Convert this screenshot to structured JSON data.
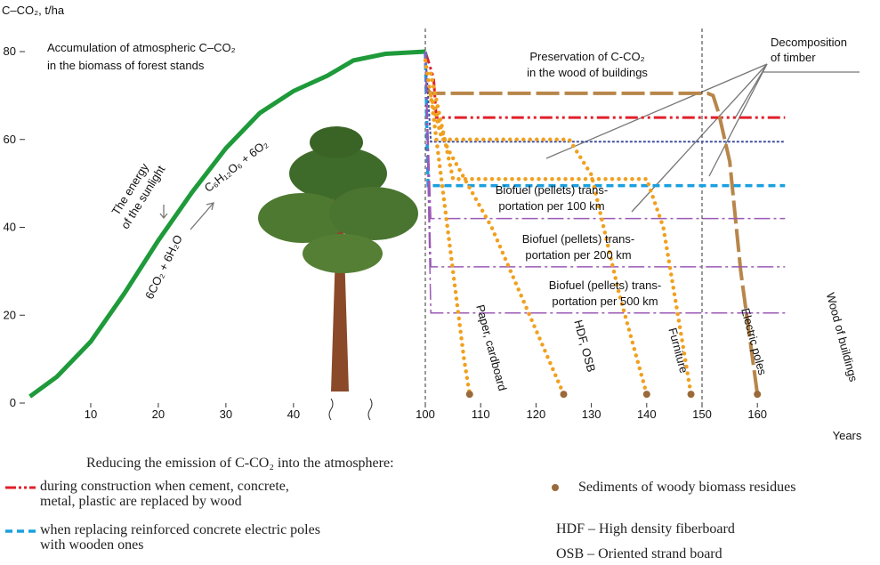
{
  "chart_data": {
    "type": "line",
    "ylabel": "C–CO₂, t/ha",
    "xlabel": "Years",
    "ylim": [
      0,
      80
    ],
    "yticks": [
      0,
      20,
      40,
      60,
      80
    ],
    "xlim": [
      0,
      47
    ],
    "xticks": [
      10,
      20,
      30,
      40
    ],
    "x2lim": [
      100,
      165
    ],
    "x2ticks": [
      100,
      110,
      120,
      130,
      140,
      150,
      160
    ],
    "vlines": [
      100,
      150
    ],
    "series": [
      {
        "color": "#1e9a3a",
        "style": "solid",
        "x": [
          1,
          5,
          10,
          15,
          20,
          25,
          30,
          35,
          40,
          45,
          55,
          75,
          100
        ],
        "values": [
          1.5,
          6,
          14,
          25,
          37,
          48,
          58,
          66,
          71,
          74.5,
          78,
          79.5,
          80
        ]
      },
      {
        "name": "during construction when cement, concrete, metal, plastic are replaced by wood",
        "color": "#e0202a",
        "style": "dashdot",
        "x": [
          100,
          101.5,
          102,
          165
        ],
        "values": [
          80,
          74,
          65,
          65
        ]
      },
      {
        "color": "#b8864a",
        "style": "longdash",
        "x": [
          100,
          101,
          151,
          152,
          153,
          155,
          157,
          160
        ],
        "values": [
          72,
          70.5,
          70.5,
          70,
          66,
          55,
          30,
          2
        ]
      },
      {
        "name": "when replacing reinforced concrete electric poles with wooden ones",
        "color": "#1aa0e0",
        "style": "dashed",
        "x": [
          100,
          100.5,
          165
        ],
        "values": [
          80,
          49.5,
          49.5
        ]
      },
      {
        "color": "#4050a0",
        "style": "wave",
        "x": [
          100,
          101,
          165
        ],
        "values": [
          80,
          59.5,
          59.5
        ]
      },
      {
        "color": "#9b59b6",
        "style": "thindashdot",
        "x": [
          100,
          101,
          165
        ],
        "values": [
          80,
          42,
          42
        ]
      },
      {
        "color": "#9b59b6",
        "style": "thindashdot",
        "x": [
          100,
          101,
          165
        ],
        "values": [
          80,
          31,
          31
        ]
      },
      {
        "color": "#9b59b6",
        "style": "thindashdot",
        "x": [
          100,
          101,
          165
        ],
        "values": [
          80,
          20.5,
          20.5
        ]
      },
      {
        "name": "Paper, cardboard",
        "color": "#f0a020",
        "style": "dotted",
        "x": [
          100,
          101,
          103,
          105,
          107,
          108
        ],
        "values": [
          78,
          70,
          50,
          30,
          10,
          2
        ]
      },
      {
        "name": "HDF, OSB",
        "color": "#f0a020",
        "style": "dotted",
        "x": [
          101,
          104,
          112,
          125
        ],
        "values": [
          70,
          58,
          40,
          2
        ]
      },
      {
        "name": "Furniture",
        "color": "#f0a020",
        "style": "dotted",
        "x": [
          101,
          103,
          126,
          130,
          135,
          140
        ],
        "values": [
          70,
          60,
          60,
          52,
          25,
          2
        ]
      },
      {
        "name": "Electric poles",
        "color": "#f0a020",
        "style": "dotted",
        "x": [
          101,
          105,
          140,
          143,
          148
        ],
        "values": [
          75,
          51,
          51,
          40,
          2
        ]
      },
      {
        "name": "Wood of buildings",
        "color": "#b8864a",
        "style": "label",
        "x": [
          160
        ],
        "values": [
          2
        ]
      },
      {
        "name": "Sediments of woody biomass residues",
        "color": "#9a6a3a",
        "style": "points",
        "x": [
          108,
          125,
          140,
          148,
          160
        ],
        "values": [
          2,
          2,
          2,
          2,
          2
        ]
      }
    ],
    "annotations": [
      {
        "lines": [
          "Accumulation of atmospheric C–CO₂",
          "in the biomass of forest stands"
        ]
      },
      {
        "lines": [
          "The energy",
          "of the sunlight"
        ]
      },
      {
        "lines": [
          "6CO₂ + 6H₂O"
        ]
      },
      {
        "lines": [
          "C₆H₁₂O₆ + 6O₂"
        ]
      },
      {
        "lines": [
          "Preservation of  C-CO₂",
          "in the wood of buildings"
        ]
      },
      {
        "lines": [
          "Decomposition",
          "of timber"
        ]
      },
      {
        "lines": [
          "Biofuel (pellets) trans-",
          "portation per 100 km"
        ]
      },
      {
        "lines": [
          "Biofuel (pellets) trans-",
          "portation per 200 km"
        ]
      },
      {
        "lines": [
          "Biofuel (pellets) trans-",
          "portation per 500 km"
        ]
      }
    ],
    "legend_title": "Reducing the emission of C-CO₂ into the atmosphere:",
    "notes": [
      "HDF – High density fiberboard",
      "OSB – Oriented strand board"
    ]
  }
}
